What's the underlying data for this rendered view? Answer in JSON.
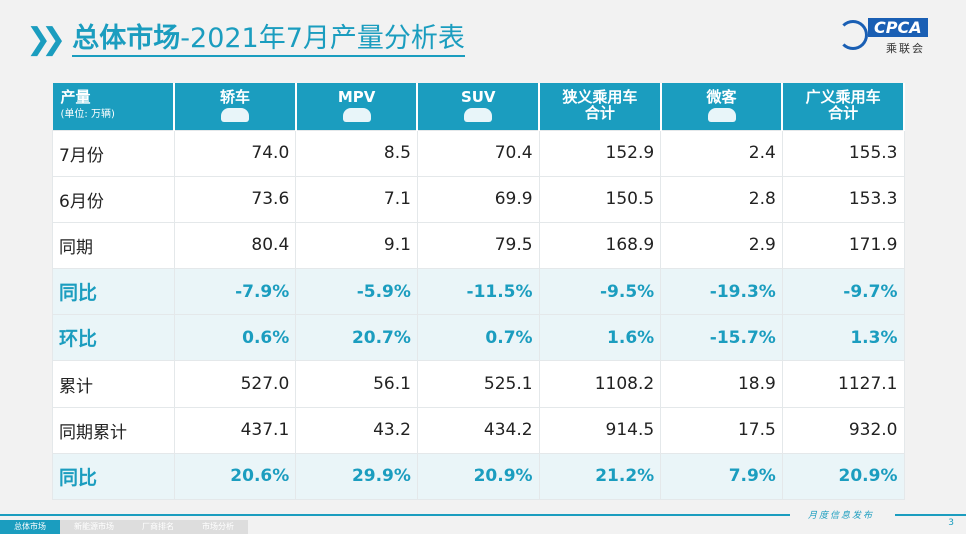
{
  "title": {
    "bold": "总体市场",
    "rest": "-2021年7月产量分析表"
  },
  "logo": {
    "text": "CPCA",
    "cn": "乘联会"
  },
  "table": {
    "header": {
      "label": "产量",
      "unit": "(单位: 万辆)"
    },
    "columns": [
      {
        "label": "轿车",
        "icon": "sedan-icon"
      },
      {
        "label": "MPV",
        "icon": "mpv-icon"
      },
      {
        "label": "SUV",
        "icon": "suv-icon"
      },
      {
        "label": "狭义乘用车\n合计"
      },
      {
        "label": "微客",
        "icon": "minivan-icon"
      },
      {
        "label": "广义乘用车\n合计"
      }
    ],
    "rows": [
      {
        "label": "7月份",
        "values": [
          "74.0",
          "8.5",
          "70.4",
          "152.9",
          "2.4",
          "155.3"
        ],
        "highlight": false
      },
      {
        "label": "6月份",
        "values": [
          "73.6",
          "7.1",
          "69.9",
          "150.5",
          "2.8",
          "153.3"
        ],
        "highlight": false
      },
      {
        "label": "同期",
        "values": [
          "80.4",
          "9.1",
          "79.5",
          "168.9",
          "2.9",
          "171.9"
        ],
        "highlight": false
      },
      {
        "label": "同比",
        "values": [
          "-7.9%",
          "-5.9%",
          "-11.5%",
          "-9.5%",
          "-19.3%",
          "-9.7%"
        ],
        "highlight": true
      },
      {
        "label": "环比",
        "values": [
          "0.6%",
          "20.7%",
          "0.7%",
          "1.6%",
          "-15.7%",
          "1.3%"
        ],
        "highlight": true
      },
      {
        "label": "累计",
        "values": [
          "527.0",
          "56.1",
          "525.1",
          "1108.2",
          "18.9",
          "1127.1"
        ],
        "highlight": false
      },
      {
        "label": "同期累计",
        "values": [
          "437.1",
          "43.2",
          "434.2",
          "914.5",
          "17.5",
          "932.0"
        ],
        "highlight": false
      },
      {
        "label": "同比",
        "values": [
          "20.6%",
          "29.9%",
          "20.9%",
          "21.2%",
          "7.9%",
          "20.9%"
        ],
        "highlight": true
      }
    ]
  },
  "footer": {
    "release": "月度信息发布",
    "page": "3",
    "tabs": [
      "总体市场",
      "新能源市场",
      "厂商排名",
      "市场分析"
    ],
    "active_tab": 0
  },
  "colors": {
    "accent": "#1b9dbf",
    "highlight_bg": "#eaf5f8"
  }
}
